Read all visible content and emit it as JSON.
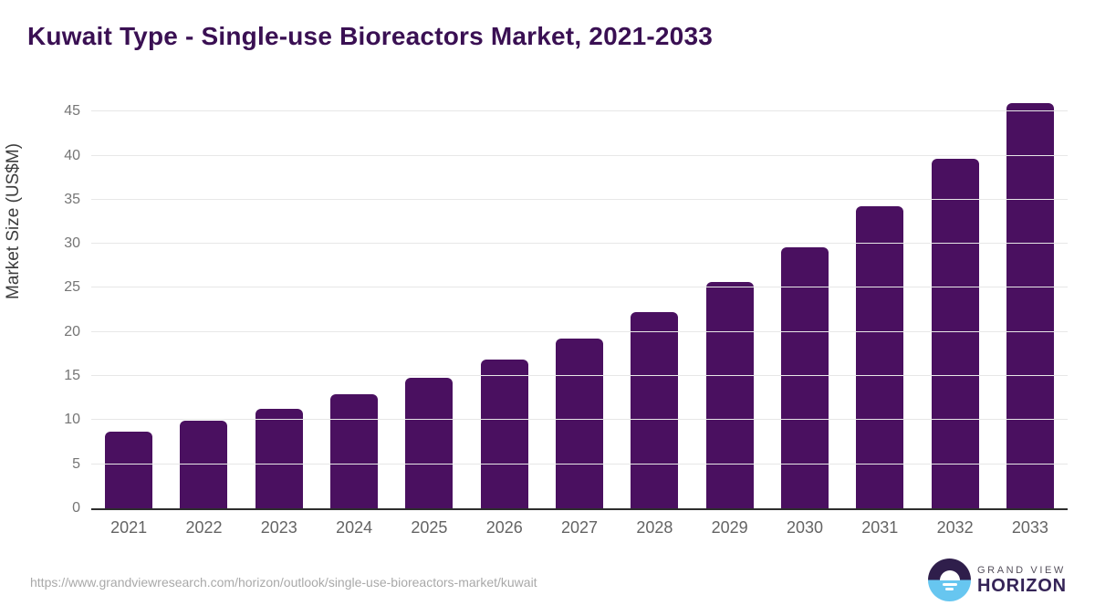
{
  "title": "Kuwait Type - Single-use Bioreactors Market, 2021-2033",
  "chart_data": {
    "type": "bar",
    "categories": [
      "2021",
      "2022",
      "2023",
      "2024",
      "2025",
      "2026",
      "2027",
      "2028",
      "2029",
      "2030",
      "2031",
      "2032",
      "2033"
    ],
    "values": [
      8.7,
      9.9,
      11.3,
      12.9,
      14.8,
      16.9,
      19.3,
      22.3,
      25.7,
      29.6,
      34.3,
      39.6,
      46.0
    ],
    "title": "Kuwait Type - Single-use Bioreactors Market, 2021-2033",
    "xlabel": "",
    "ylabel": "Market Size (US$M)",
    "yticks": [
      0,
      5,
      10,
      15,
      20,
      25,
      30,
      35,
      40,
      45
    ],
    "ylim": [
      0,
      47.3
    ],
    "grid": true,
    "legend": "none",
    "bar_color": "#4a1060"
  },
  "colors": {
    "title": "#3a1053",
    "bar": "#4a1060",
    "gridline": "#e7e7e7",
    "axis_line": "#2d2d2d",
    "tick_label": "#757575",
    "x_label": "#646464",
    "url_text": "#a9a9a9",
    "logo_dark": "#2f1e4b",
    "logo_blue": "#67c6f0",
    "logo_name": "#352457"
  },
  "footer": {
    "source_url": "https://www.grandviewresearch.com/horizon/outlook/single-use-bioreactors-market/kuwait",
    "logo": {
      "top_text": "GRAND VIEW",
      "bottom_text": "HORIZON",
      "icon": "sunset-horizon-icon"
    }
  }
}
